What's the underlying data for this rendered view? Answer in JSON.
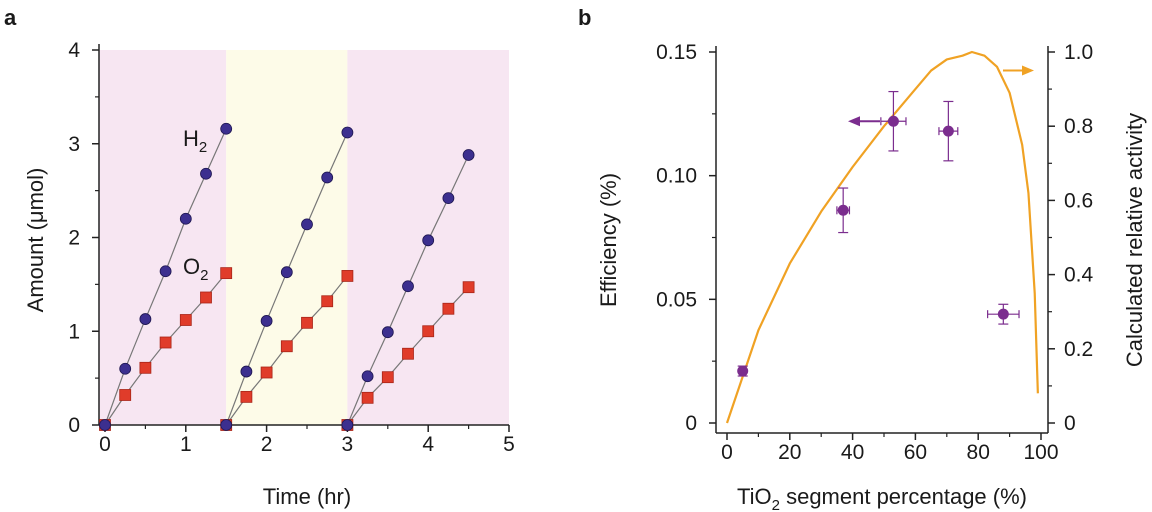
{
  "chart_data": [
    {
      "panel": "a",
      "type": "scatter",
      "xlabel": "Time (hr)",
      "ylabel": "Amount (μmol)",
      "xlim": [
        0,
        5
      ],
      "ylim": [
        0,
        4
      ],
      "xticks": [
        "0",
        "1",
        "2",
        "3",
        "4",
        "5"
      ],
      "yticks": [
        "0",
        "1",
        "2",
        "3",
        "4"
      ],
      "background_bands": [
        {
          "x": [
            0,
            1.5
          ],
          "color": "#f7e6f2"
        },
        {
          "x": [
            1.5,
            3
          ],
          "color": "#fdfbe8"
        },
        {
          "x": [
            3,
            5
          ],
          "color": "#f7e6f2"
        }
      ],
      "series": [
        {
          "label_main": "H",
          "label_sub": "2",
          "color": "#3c2f8f",
          "marker": "circle",
          "cycles": [
            [
              [
                0,
                0
              ],
              [
                0.25,
                0.6
              ],
              [
                0.5,
                1.13
              ],
              [
                0.75,
                1.64
              ],
              [
                1.0,
                2.2
              ],
              [
                1.25,
                2.68
              ],
              [
                1.5,
                3.16
              ]
            ],
            [
              [
                1.5,
                0
              ],
              [
                1.75,
                0.57
              ],
              [
                2.0,
                1.11
              ],
              [
                2.25,
                1.63
              ],
              [
                2.5,
                2.14
              ],
              [
                2.75,
                2.64
              ],
              [
                3.0,
                3.12
              ]
            ],
            [
              [
                3.0,
                0
              ],
              [
                3.25,
                0.52
              ],
              [
                3.5,
                0.99
              ],
              [
                3.75,
                1.48
              ],
              [
                4.0,
                1.97
              ],
              [
                4.25,
                2.42
              ],
              [
                4.5,
                2.88
              ]
            ]
          ]
        },
        {
          "label_main": "O",
          "label_sub": "2",
          "color": "#e03c2a",
          "marker": "square",
          "cycles": [
            [
              [
                0,
                0
              ],
              [
                0.25,
                0.32
              ],
              [
                0.5,
                0.61
              ],
              [
                0.75,
                0.88
              ],
              [
                1.0,
                1.12
              ],
              [
                1.25,
                1.36
              ],
              [
                1.5,
                1.62
              ]
            ],
            [
              [
                1.5,
                0
              ],
              [
                1.75,
                0.3
              ],
              [
                2.0,
                0.56
              ],
              [
                2.25,
                0.84
              ],
              [
                2.5,
                1.09
              ],
              [
                2.75,
                1.32
              ],
              [
                3.0,
                1.59
              ]
            ],
            [
              [
                3.0,
                0
              ],
              [
                3.25,
                0.29
              ],
              [
                3.5,
                0.51
              ],
              [
                3.75,
                0.76
              ],
              [
                4.0,
                1.0
              ],
              [
                4.25,
                1.24
              ],
              [
                4.5,
                1.47
              ]
            ]
          ]
        }
      ]
    },
    {
      "panel": "b",
      "type": "scatter",
      "xlabel_main": "TiO",
      "xlabel_sub": "2",
      "xlabel_rest": " segment percentage (%)",
      "ylabel": "Efficiency (%)",
      "ylabel_right": "Calculated relative activity",
      "xlim": [
        0,
        100
      ],
      "ylim": [
        0,
        0.15
      ],
      "ylim_right": [
        0,
        1.0
      ],
      "xticks": [
        "0",
        "20",
        "40",
        "60",
        "80",
        "100"
      ],
      "yticks": [
        "0",
        "0.05",
        "0.10",
        "0.15"
      ],
      "yticks_right": [
        "0",
        "0.2",
        "0.4",
        "0.6",
        "0.8",
        "1.0"
      ],
      "points": {
        "color": "#7b2d8e",
        "data": [
          {
            "x": 5,
            "y": 0.021,
            "xerr": 0.8,
            "yerr": 0.002
          },
          {
            "x": 37,
            "y": 0.086,
            "xerr": 2,
            "yerr": 0.009
          },
          {
            "x": 53,
            "y": 0.122,
            "xerr": 4,
            "yerr": 0.012
          },
          {
            "x": 70.5,
            "y": 0.118,
            "xerr": 3,
            "yerr": 0.012
          },
          {
            "x": 88,
            "y": 0.044,
            "xerr": 5,
            "yerr": 0.004
          }
        ]
      },
      "curve": {
        "color": "#f0a224",
        "axis": "right",
        "data": [
          [
            0,
            0
          ],
          [
            10,
            0.25
          ],
          [
            20,
            0.43
          ],
          [
            30,
            0.57
          ],
          [
            40,
            0.69
          ],
          [
            50,
            0.8
          ],
          [
            60,
            0.9
          ],
          [
            65,
            0.95
          ],
          [
            70,
            0.98
          ],
          [
            75,
            0.99
          ],
          [
            78,
            1.0
          ],
          [
            82,
            0.99
          ],
          [
            86,
            0.96
          ],
          [
            90,
            0.89
          ],
          [
            94,
            0.75
          ],
          [
            96,
            0.62
          ],
          [
            98,
            0.35
          ],
          [
            99,
            0.08
          ]
        ]
      },
      "arrows": [
        {
          "direction": "left",
          "color": "#7b2d8e"
        },
        {
          "direction": "right",
          "color": "#f0a224"
        }
      ]
    }
  ]
}
